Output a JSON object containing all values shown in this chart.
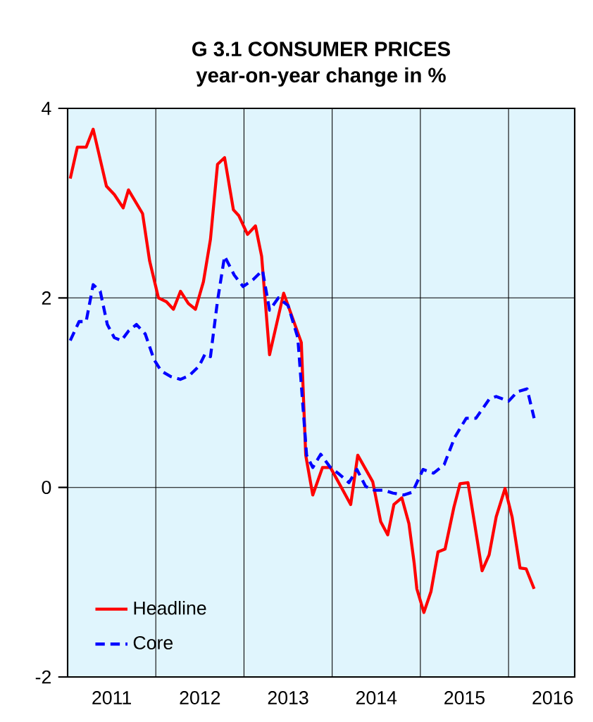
{
  "chart_data": {
    "type": "line",
    "title": "G 3.1 CONSUMER PRICES",
    "subtitle": "year-on-year change in %",
    "xlim": [
      2011,
      2016.75
    ],
    "ylim": [
      -2,
      4
    ],
    "yticks": [
      -2,
      0,
      2,
      4
    ],
    "xticks": [
      {
        "value": 2012,
        "label": null
      },
      {
        "value": 2013,
        "label": null
      },
      {
        "value": 2014,
        "label": null
      },
      {
        "value": 2015,
        "label": null
      },
      {
        "value": 2016,
        "label": null
      },
      {
        "value": 2011.5,
        "label": "2011"
      },
      {
        "value": 2012.5,
        "label": "2012"
      },
      {
        "value": 2013.5,
        "label": "2013"
      },
      {
        "value": 2014.5,
        "label": "2014"
      },
      {
        "value": 2015.5,
        "label": "2015"
      },
      {
        "value": 2016.5,
        "label": "2016"
      }
    ],
    "grid": true,
    "legend": "bottom left",
    "series": [
      {
        "name": "Headline",
        "color": "#ff0000",
        "line_style": "solid",
        "x": [
          2011.03,
          2011.11,
          2011.21,
          2011.29,
          2011.44,
          2011.53,
          2011.63,
          2011.69,
          2011.85,
          2011.93,
          2012.03,
          2012.12,
          2012.2,
          2012.28,
          2012.37,
          2012.45,
          2012.54,
          2012.62,
          2012.7,
          2012.78,
          2012.88,
          2012.94,
          2013.04,
          2013.13,
          2013.2,
          2013.29,
          2013.45,
          2013.65,
          2013.7,
          2013.78,
          2013.89,
          2013.98,
          2014.11,
          2014.21,
          2014.29,
          2014.46,
          2014.55,
          2014.63,
          2014.7,
          2014.79,
          2014.87,
          2014.93,
          2014.96,
          2015.04,
          2015.12,
          2015.2,
          2015.28,
          2015.38,
          2015.45,
          2015.54,
          2015.62,
          2015.7,
          2015.78,
          2015.86,
          2015.96,
          2016.04,
          2016.13,
          2016.2,
          2016.29
        ],
        "values": [
          3.26,
          3.59,
          3.59,
          3.78,
          3.18,
          3.09,
          2.95,
          3.14,
          2.89,
          2.39,
          2.0,
          1.96,
          1.88,
          2.07,
          1.94,
          1.88,
          2.17,
          2.62,
          3.41,
          3.48,
          2.93,
          2.87,
          2.67,
          2.76,
          2.44,
          1.4,
          2.05,
          1.53,
          0.34,
          -0.08,
          0.21,
          0.21,
          -0.01,
          -0.18,
          0.34,
          0.06,
          -0.36,
          -0.5,
          -0.18,
          -0.11,
          -0.38,
          -0.8,
          -1.07,
          -1.32,
          -1.1,
          -0.68,
          -0.65,
          -0.21,
          0.04,
          0.05,
          -0.41,
          -0.88,
          -0.71,
          -0.31,
          -0.01,
          -0.31,
          -0.85,
          -0.86,
          -1.07
        ]
      },
      {
        "name": "Core",
        "color": "#0000ff",
        "line_style": "dashed",
        "x": [
          2011.03,
          2011.13,
          2011.21,
          2011.29,
          2011.37,
          2011.45,
          2011.53,
          2011.61,
          2011.69,
          2011.78,
          2011.88,
          2011.98,
          2012.06,
          2012.17,
          2012.28,
          2012.38,
          2012.49,
          2012.56,
          2012.62,
          2012.7,
          2012.78,
          2012.89,
          2012.99,
          2013.1,
          2013.21,
          2013.29,
          2013.39,
          2013.5,
          2013.61,
          2013.71,
          2013.78,
          2013.87,
          2013.98,
          2014.08,
          2014.19,
          2014.28,
          2014.38,
          2014.48,
          2014.59,
          2014.69,
          2014.81,
          2014.91,
          2015.03,
          2015.15,
          2015.27,
          2015.39,
          2015.52,
          2015.63,
          2015.78,
          2015.86,
          2016.0,
          2016.1,
          2016.21,
          2016.29
        ],
        "values": [
          1.55,
          1.75,
          1.75,
          2.14,
          2.07,
          1.72,
          1.58,
          1.55,
          1.65,
          1.72,
          1.62,
          1.35,
          1.23,
          1.17,
          1.14,
          1.18,
          1.28,
          1.41,
          1.38,
          1.97,
          2.44,
          2.24,
          2.12,
          2.19,
          2.29,
          1.87,
          2.0,
          1.92,
          1.58,
          0.34,
          0.21,
          0.35,
          0.21,
          0.14,
          0.05,
          0.19,
          0.01,
          -0.03,
          -0.03,
          -0.06,
          -0.08,
          -0.05,
          0.19,
          0.15,
          0.24,
          0.53,
          0.73,
          0.73,
          0.93,
          0.96,
          0.91,
          1.01,
          1.04,
          0.73
        ]
      }
    ]
  }
}
